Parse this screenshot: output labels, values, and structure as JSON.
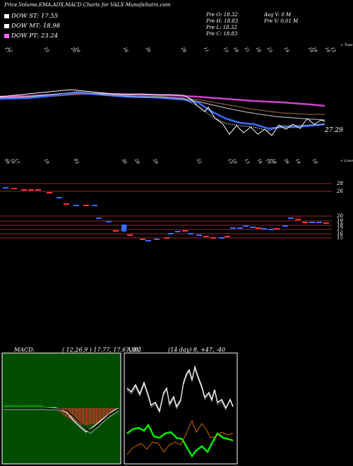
{
  "header": {
    "title": "Price,Volume,EMA,ADX,MACD Charts for VALX",
    "site": "MunafaSutra.com"
  },
  "legend": [
    {
      "label": "DOW ST: 17.55",
      "color": "#ffffff"
    },
    {
      "label": "DOW MT: 18.98",
      "color": "#ffffff"
    },
    {
      "label": "DOW PT: 23.24",
      "color": "#ff66ff"
    }
  ],
  "stats": {
    "prev_open": "Pre  O: 18.32",
    "prev_high": "Pre  H: 18.83",
    "prev_low": "Pre  L: 18.32",
    "prev_close": "Pre  C: 18.83",
    "avg_volume": "Avg V: 0   M",
    "prev_volume": "Pre   V: 0.01 M"
  },
  "price_panel": {
    "top_label": "< Tops",
    "bottom_label": "< Lows",
    "last_price": "27.29",
    "top_dates": [
      "17",
      "12",
      "23",
      "20",
      "24",
      "16",
      "26",
      "28",
      "11",
      "13",
      "18",
      "21",
      "18",
      "23",
      "14",
      "19",
      "24",
      "14",
      "23"
    ],
    "low_dates": [
      "09",
      "16",
      "17",
      "10",
      "03",
      "30",
      "29",
      "29",
      "22",
      "13",
      "10",
      "13",
      "16",
      "15",
      "17",
      "18",
      "26",
      "14",
      "18"
    ]
  },
  "volume_panel": {
    "levels": [
      "28",
      "26",
      "20",
      "19",
      "18",
      "17",
      "16",
      "15"
    ]
  },
  "macd": {
    "label": "MACD:",
    "params": "( 12,26,9 ) 17.77, 17.67, 0.1"
  },
  "adx": {
    "label": "ADX",
    "params": "(14  day) 8, +47, -40"
  },
  "colors": {
    "ema_short": "#3a6bff",
    "ema_long": "#cc44cc",
    "macd_panel": "#004d00",
    "adx_plus": "#00ee00",
    "adx_minus": "#cc6600"
  },
  "chart_data": [
    {
      "type": "line",
      "panel": "price",
      "series": [],
      "last_value": 27.29
    },
    {
      "type": "bar",
      "panel": "volume",
      "y_levels": [
        28,
        26,
        20,
        19,
        18,
        17,
        16,
        15
      ]
    },
    {
      "type": "line",
      "panel": "macd",
      "values": [
        17.77,
        17.67,
        0.1
      ]
    },
    {
      "type": "line",
      "panel": "adx",
      "values": [
        8,
        47,
        40
      ]
    }
  ]
}
